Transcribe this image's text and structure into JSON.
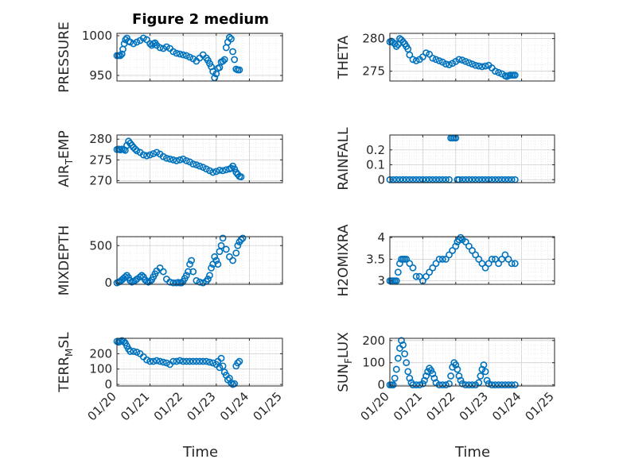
{
  "figure": {
    "title": "Figure 2 medium",
    "marker_color": "#0072BD"
  },
  "chart_data": [
    {
      "type": "scatter",
      "ylabel": "PRESSURE",
      "ylim": [
        943,
        1003
      ],
      "yticks": [
        "950",
        "1000"
      ],
      "yticks_values": [
        950,
        1000
      ],
      "xlim": [
        0,
        5
      ],
      "xtick_labels": [
        "01/20",
        "01/21",
        "01/22",
        "01/23",
        "01/24",
        "01/25"
      ],
      "grid": true,
      "x": [
        0.0,
        0.05,
        0.1,
        0.15,
        0.18,
        0.22,
        0.26,
        0.3,
        0.35,
        0.4,
        0.5,
        0.6,
        0.7,
        0.8,
        0.9,
        1.0,
        1.05,
        1.1,
        1.15,
        1.2,
        1.3,
        1.4,
        1.5,
        1.6,
        1.7,
        1.8,
        1.9,
        2.0,
        2.1,
        2.2,
        2.3,
        2.4,
        2.5,
        2.6,
        2.7,
        2.75,
        2.8,
        2.85,
        2.9,
        2.95,
        3.0,
        3.05,
        3.1,
        3.15,
        3.2,
        3.25,
        3.3,
        3.35,
        3.4,
        3.45,
        3.5,
        3.55,
        3.6,
        3.65,
        3.7
      ],
      "y": [
        975,
        975,
        975,
        977,
        983,
        990,
        995,
        997,
        993,
        992,
        990,
        992,
        994,
        997,
        995,
        990,
        988,
        990,
        991,
        988,
        985,
        984,
        986,
        984,
        980,
        978,
        977,
        976,
        975,
        973,
        971,
        968,
        972,
        976,
        972,
        969,
        965,
        961,
        955,
        947,
        952,
        959,
        960,
        967,
        968,
        970,
        985,
        992,
        998,
        996,
        980,
        970,
        958,
        957,
        957
      ]
    },
    {
      "type": "scatter",
      "ylabel": "THETA",
      "ylim": [
        273.5,
        280.8
      ],
      "yticks": [
        "275",
        "280"
      ],
      "yticks_values": [
        275,
        280
      ],
      "xlim": [
        0,
        5
      ],
      "xtick_labels": [
        "01/20",
        "01/21",
        "01/22",
        "01/23",
        "01/24",
        "01/25"
      ],
      "grid": true,
      "x": [
        0.0,
        0.05,
        0.1,
        0.15,
        0.2,
        0.25,
        0.3,
        0.35,
        0.4,
        0.45,
        0.5,
        0.55,
        0.6,
        0.7,
        0.8,
        0.9,
        1.0,
        1.1,
        1.2,
        1.3,
        1.4,
        1.5,
        1.6,
        1.7,
        1.8,
        1.9,
        2.0,
        2.1,
        2.2,
        2.3,
        2.4,
        2.5,
        2.6,
        2.7,
        2.8,
        2.9,
        3.0,
        3.1,
        3.2,
        3.3,
        3.4,
        3.5,
        3.55,
        3.6,
        3.65,
        3.7,
        3.75,
        3.8
      ],
      "y": [
        279.5,
        279.6,
        279.4,
        279.2,
        278.8,
        279.1,
        280.0,
        279.8,
        279.5,
        279.2,
        278.8,
        278.4,
        277.5,
        276.8,
        276.6,
        276.8,
        277.2,
        277.8,
        277.6,
        277.0,
        276.8,
        276.6,
        276.4,
        276.1,
        276.0,
        276.2,
        276.5,
        276.8,
        276.7,
        276.5,
        276.3,
        276.1,
        275.9,
        275.8,
        275.7,
        275.8,
        275.9,
        275.5,
        275.0,
        274.8,
        274.6,
        274.3,
        274.2,
        274.3,
        274.4,
        274.4,
        274.4,
        274.4
      ]
    },
    {
      "type": "scatter",
      "ylabel": "AIR",
      "ylabel_sub": "T",
      "ylabel_rest": "EMP",
      "ylim": [
        269.5,
        281
      ],
      "yticks": [
        "270",
        "275",
        "280"
      ],
      "yticks_values": [
        270,
        275,
        280
      ],
      "xlim": [
        0,
        5
      ],
      "xtick_labels": [
        "01/20",
        "01/21",
        "01/22",
        "01/23",
        "01/24",
        "01/25"
      ],
      "grid": true,
      "x": [
        0.0,
        0.05,
        0.1,
        0.15,
        0.2,
        0.25,
        0.3,
        0.35,
        0.4,
        0.45,
        0.5,
        0.55,
        0.6,
        0.7,
        0.8,
        0.9,
        1.0,
        1.1,
        1.2,
        1.3,
        1.4,
        1.5,
        1.6,
        1.7,
        1.8,
        1.9,
        2.0,
        2.1,
        2.2,
        2.3,
        2.4,
        2.5,
        2.6,
        2.7,
        2.8,
        2.9,
        3.0,
        3.1,
        3.2,
        3.3,
        3.4,
        3.45,
        3.5,
        3.55,
        3.6,
        3.65,
        3.7,
        3.75
      ],
      "y": [
        277.5,
        277.6,
        277.4,
        277.6,
        277.5,
        277.3,
        278.5,
        279.5,
        279.0,
        278.5,
        278.0,
        277.6,
        277.2,
        276.8,
        276.2,
        276.0,
        276.2,
        276.5,
        276.8,
        276.4,
        275.8,
        275.4,
        275.2,
        275.0,
        274.8,
        275.0,
        275.2,
        274.8,
        274.5,
        274.0,
        273.8,
        273.5,
        273.2,
        272.8,
        272.4,
        272.0,
        272.2,
        272.5,
        272.4,
        272.6,
        272.8,
        273.0,
        273.5,
        272.8,
        272.0,
        271.5,
        271.0,
        270.9
      ]
    },
    {
      "type": "scatter",
      "ylabel": "RAINFALL",
      "ylim": [
        -0.02,
        0.3
      ],
      "yticks": [
        "0",
        "0.1",
        "0.2"
      ],
      "yticks_values": [
        0,
        0.1,
        0.2
      ],
      "xlim": [
        0,
        5
      ],
      "xtick_labels": [
        "01/20",
        "01/21",
        "01/22",
        "01/23",
        "01/24",
        "01/25"
      ],
      "grid": true,
      "x": [
        0.0,
        0.1,
        0.2,
        0.3,
        0.4,
        0.5,
        0.6,
        0.7,
        0.8,
        0.9,
        1.0,
        1.1,
        1.2,
        1.3,
        1.4,
        1.5,
        1.6,
        1.7,
        1.8,
        1.85,
        1.9,
        1.95,
        2.0,
        2.05,
        2.1,
        2.2,
        2.3,
        2.4,
        2.5,
        2.6,
        2.7,
        2.8,
        2.9,
        3.0,
        3.1,
        3.2,
        3.3,
        3.4,
        3.5,
        3.6,
        3.7,
        3.8
      ],
      "y": [
        0,
        0,
        0,
        0,
        0,
        0,
        0,
        0,
        0,
        0,
        0,
        0,
        0,
        0,
        0,
        0,
        0,
        0,
        0,
        0.28,
        0.28,
        0.28,
        0.28,
        0,
        0,
        0,
        0,
        0,
        0,
        0,
        0,
        0,
        0,
        0,
        0,
        0,
        0,
        0,
        0,
        0,
        0,
        0
      ]
    },
    {
      "type": "scatter",
      "ylabel": "MIXDEPTH",
      "ylim": [
        -20,
        620
      ],
      "yticks": [
        "0",
        "500"
      ],
      "yticks_values": [
        0,
        500
      ],
      "xlim": [
        0,
        5
      ],
      "xtick_labels": [
        "01/20",
        "01/21",
        "01/22",
        "01/23",
        "01/24",
        "01/25"
      ],
      "grid": true,
      "x": [
        0.0,
        0.05,
        0.1,
        0.15,
        0.2,
        0.25,
        0.3,
        0.35,
        0.4,
        0.45,
        0.5,
        0.55,
        0.6,
        0.7,
        0.75,
        0.8,
        0.85,
        0.9,
        0.95,
        1.0,
        1.05,
        1.1,
        1.15,
        1.2,
        1.3,
        1.4,
        1.5,
        1.6,
        1.7,
        1.8,
        1.85,
        1.9,
        1.95,
        2.0,
        2.05,
        2.1,
        2.15,
        2.2,
        2.25,
        2.3,
        2.4,
        2.5,
        2.6,
        2.7,
        2.75,
        2.8,
        2.85,
        2.9,
        2.95,
        3.0,
        3.05,
        3.1,
        3.15,
        3.2,
        3.3,
        3.4,
        3.5,
        3.6,
        3.65,
        3.7,
        3.75,
        3.8
      ],
      "y": [
        0,
        10,
        20,
        40,
        60,
        80,
        100,
        70,
        30,
        10,
        20,
        30,
        50,
        80,
        100,
        80,
        40,
        20,
        10,
        20,
        40,
        80,
        120,
        160,
        200,
        150,
        50,
        10,
        0,
        0,
        5,
        0,
        0,
        20,
        60,
        100,
        150,
        250,
        300,
        150,
        30,
        10,
        0,
        20,
        50,
        100,
        200,
        250,
        350,
        300,
        250,
        420,
        500,
        600,
        450,
        350,
        300,
        400,
        500,
        550,
        580,
        600
      ]
    },
    {
      "type": "scatter",
      "ylabel": "H2OMIXRA",
      "ylim": [
        2.92,
        4.02
      ],
      "yticks": [
        "3",
        "3.5",
        "4"
      ],
      "yticks_values": [
        3,
        3.5,
        4
      ],
      "xlim": [
        0,
        5
      ],
      "xtick_labels": [
        "01/20",
        "01/21",
        "01/22",
        "01/23",
        "01/24",
        "01/25"
      ],
      "grid": true,
      "x": [
        0.0,
        0.05,
        0.1,
        0.15,
        0.2,
        0.25,
        0.3,
        0.35,
        0.4,
        0.45,
        0.5,
        0.6,
        0.7,
        0.8,
        0.9,
        1.0,
        1.1,
        1.2,
        1.3,
        1.4,
        1.5,
        1.6,
        1.7,
        1.8,
        1.9,
        2.0,
        2.05,
        2.1,
        2.15,
        2.2,
        2.3,
        2.4,
        2.5,
        2.6,
        2.7,
        2.8,
        2.9,
        3.0,
        3.1,
        3.2,
        3.3,
        3.4,
        3.5,
        3.6,
        3.7,
        3.8
      ],
      "y": [
        3.0,
        3.0,
        3.0,
        3.0,
        3.0,
        3.2,
        3.4,
        3.5,
        3.5,
        3.5,
        3.5,
        3.4,
        3.3,
        3.1,
        3.1,
        3.0,
        3.1,
        3.2,
        3.3,
        3.4,
        3.5,
        3.5,
        3.5,
        3.6,
        3.7,
        3.8,
        3.9,
        3.95,
        4.0,
        3.95,
        3.9,
        3.8,
        3.7,
        3.6,
        3.5,
        3.4,
        3.3,
        3.4,
        3.5,
        3.5,
        3.4,
        3.5,
        3.6,
        3.5,
        3.4,
        3.4
      ]
    },
    {
      "type": "scatter",
      "ylabel": "TERR",
      "ylabel_sub": "M",
      "ylabel_rest": "SL",
      "ylim": [
        -10,
        300
      ],
      "yticks": [
        "0",
        "100",
        "200"
      ],
      "yticks_values": [
        0,
        100,
        200
      ],
      "xlim": [
        0,
        5
      ],
      "xtick_labels": [
        "01/20",
        "01/21",
        "01/22",
        "01/23",
        "01/24",
        "01/25"
      ],
      "grid": true,
      "x": [
        0.0,
        0.05,
        0.1,
        0.15,
        0.2,
        0.25,
        0.3,
        0.35,
        0.4,
        0.5,
        0.6,
        0.7,
        0.8,
        0.9,
        1.0,
        1.1,
        1.2,
        1.3,
        1.4,
        1.5,
        1.6,
        1.7,
        1.8,
        1.9,
        2.0,
        2.1,
        2.2,
        2.3,
        2.4,
        2.5,
        2.6,
        2.7,
        2.8,
        2.9,
        3.0,
        3.05,
        3.1,
        3.15,
        3.2,
        3.25,
        3.3,
        3.35,
        3.4,
        3.45,
        3.5,
        3.55,
        3.6,
        3.65,
        3.7
      ],
      "y": [
        280,
        275,
        280,
        285,
        280,
        270,
        250,
        230,
        215,
        215,
        210,
        200,
        180,
        160,
        150,
        150,
        155,
        150,
        145,
        140,
        130,
        150,
        150,
        155,
        150,
        150,
        150,
        150,
        150,
        150,
        150,
        150,
        145,
        140,
        130,
        150,
        110,
        170,
        120,
        80,
        60,
        30,
        40,
        10,
        0,
        5,
        120,
        140,
        150
      ]
    },
    {
      "type": "scatter",
      "ylabel": "SUN",
      "ylabel_sub": "F",
      "ylabel_rest": "LUX",
      "ylim": [
        -5,
        210
      ],
      "yticks": [
        "0",
        "100",
        "200"
      ],
      "yticks_values": [
        0,
        100,
        200
      ],
      "xlim": [
        0,
        5
      ],
      "xtick_labels": [
        "01/20",
        "01/21",
        "01/22",
        "01/23",
        "01/24",
        "01/25"
      ],
      "grid": true,
      "x": [
        0.0,
        0.05,
        0.1,
        0.15,
        0.2,
        0.25,
        0.3,
        0.35,
        0.4,
        0.45,
        0.5,
        0.55,
        0.6,
        0.65,
        0.7,
        0.8,
        0.9,
        1.0,
        1.05,
        1.1,
        1.15,
        1.2,
        1.25,
        1.3,
        1.35,
        1.4,
        1.5,
        1.6,
        1.7,
        1.8,
        1.85,
        1.9,
        1.95,
        2.0,
        2.05,
        2.1,
        2.15,
        2.2,
        2.3,
        2.4,
        2.5,
        2.6,
        2.7,
        2.75,
        2.8,
        2.85,
        2.9,
        2.95,
        3.0,
        3.1,
        3.2,
        3.3,
        3.4,
        3.5,
        3.6,
        3.7,
        3.8
      ],
      "y": [
        0,
        0,
        0,
        30,
        70,
        120,
        165,
        200,
        180,
        140,
        100,
        60,
        30,
        10,
        0,
        0,
        0,
        5,
        20,
        40,
        60,
        75,
        65,
        50,
        30,
        10,
        0,
        0,
        0,
        5,
        40,
        80,
        100,
        90,
        70,
        40,
        20,
        5,
        0,
        0,
        0,
        0,
        10,
        40,
        70,
        90,
        60,
        20,
        5,
        0,
        0,
        0,
        0,
        0,
        0,
        0,
        0
      ]
    }
  ],
  "xlabel": "Time"
}
